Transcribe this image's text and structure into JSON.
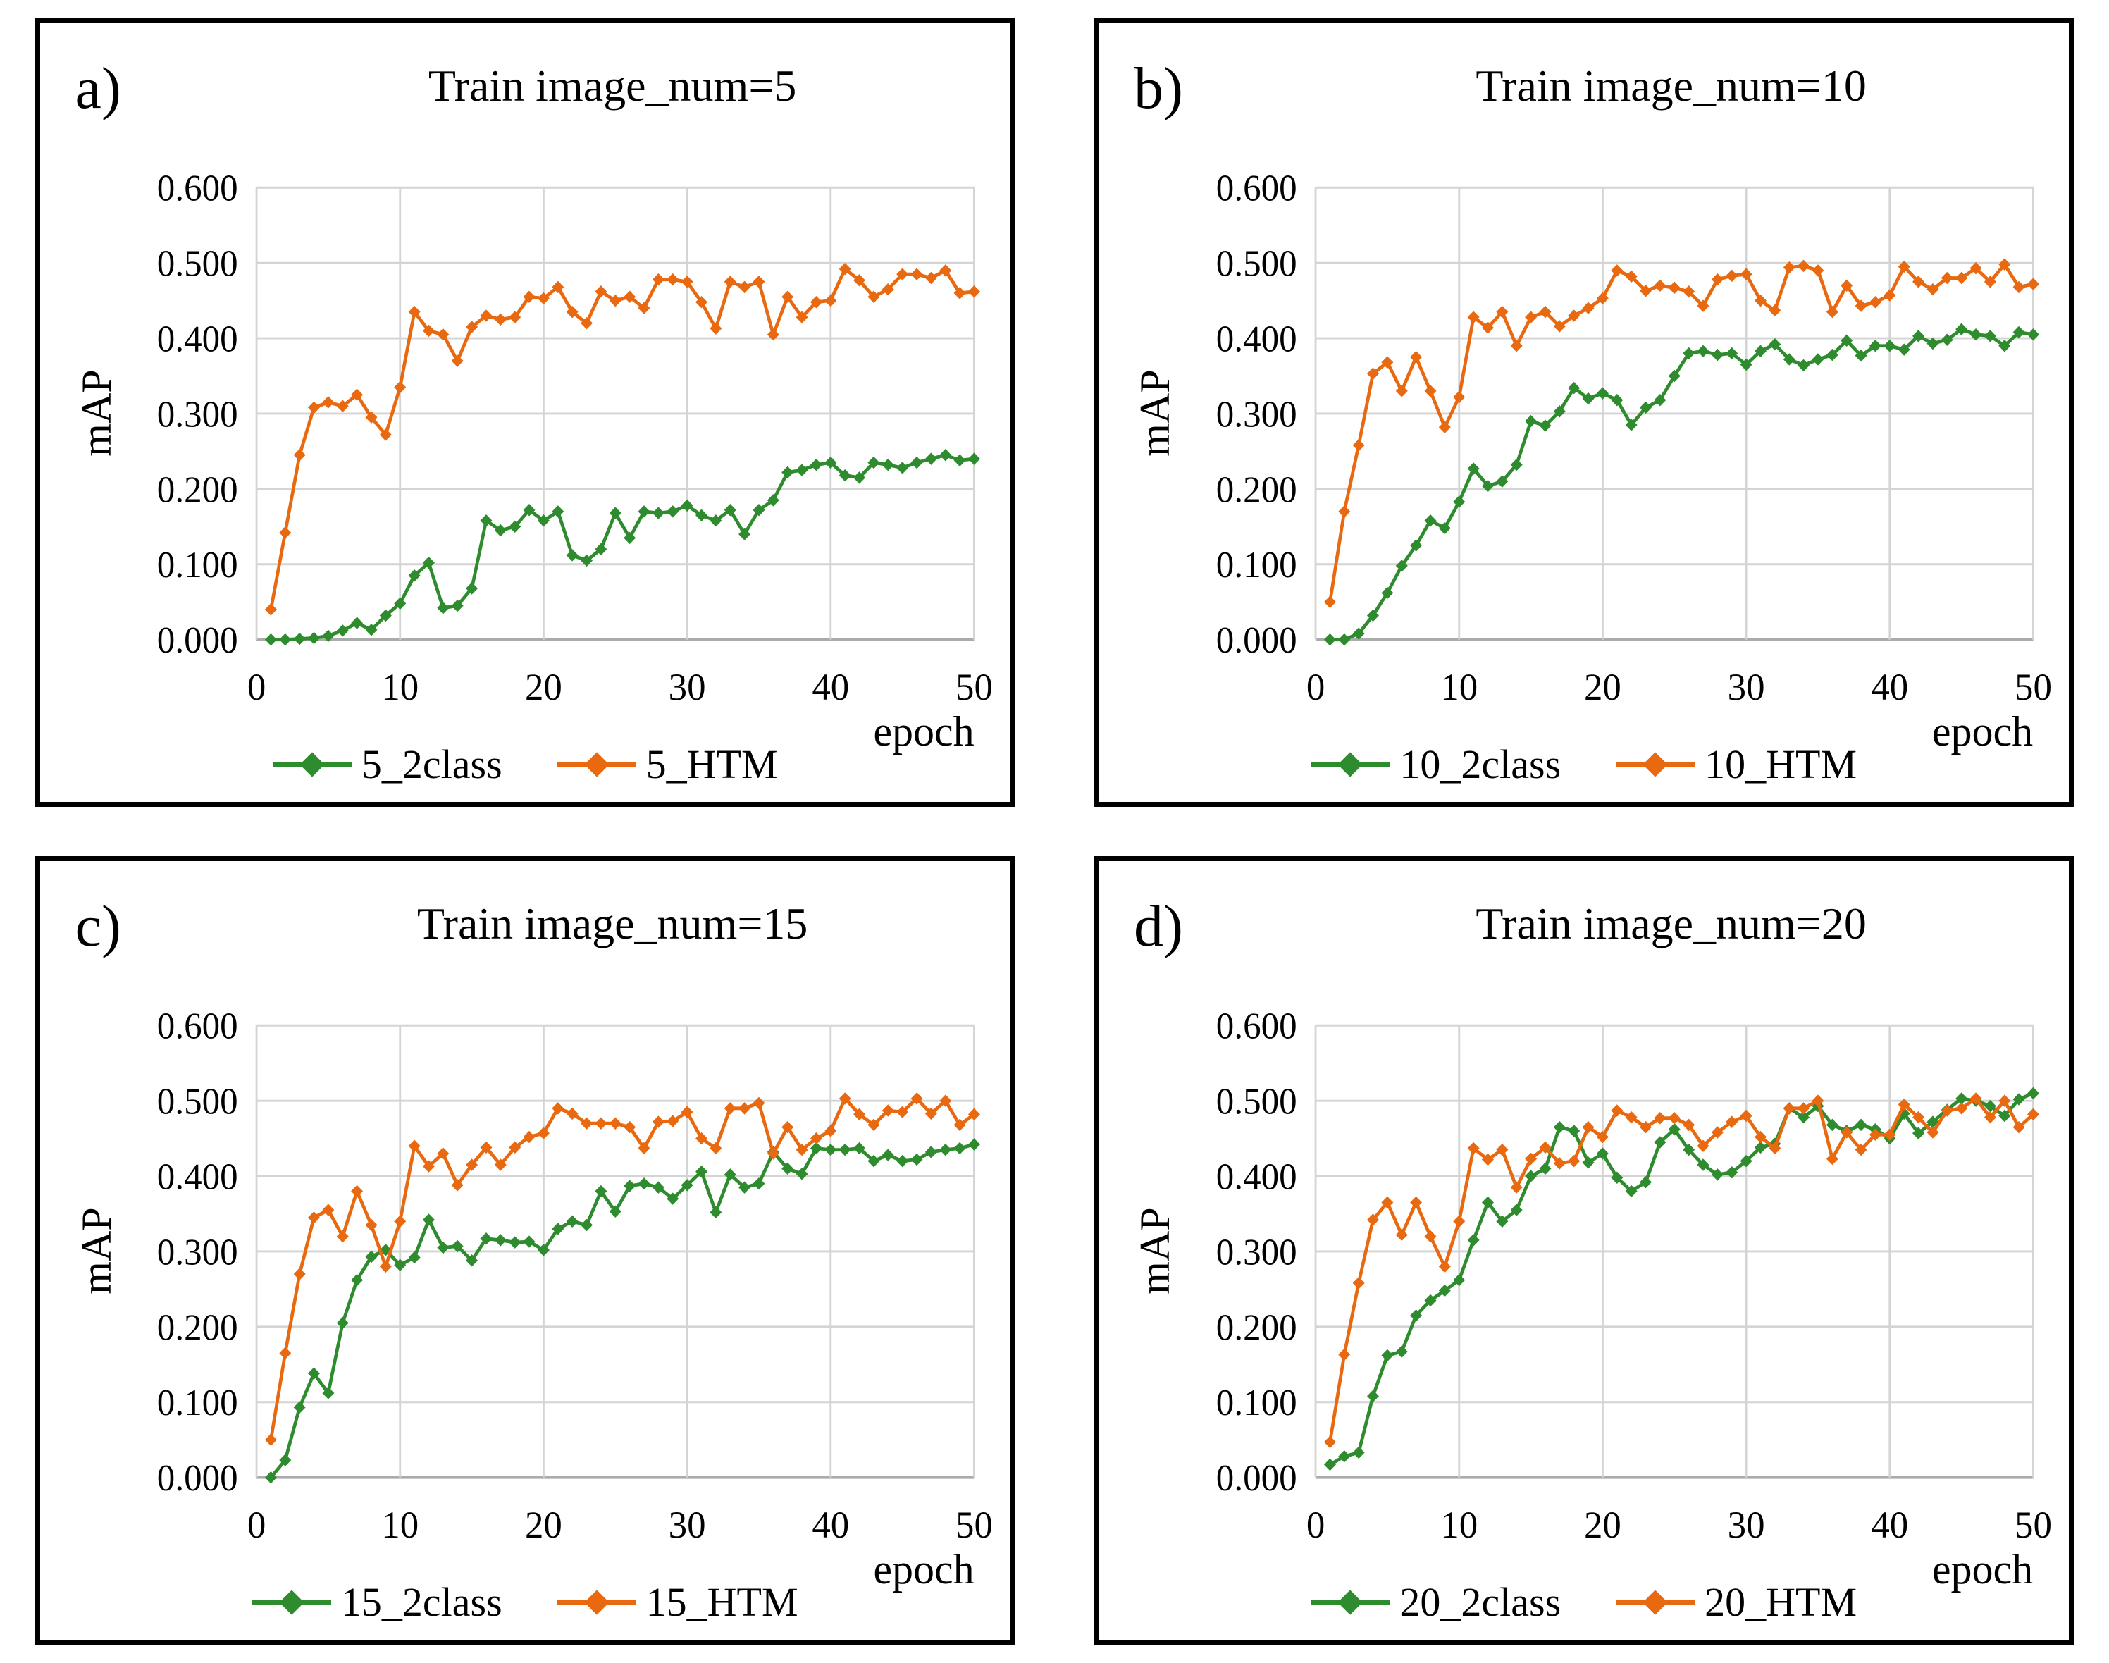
{
  "figure": {
    "background": "#ffffff",
    "panel_border_color": "#000000"
  },
  "colors": {
    "green": "#2E8B2E",
    "orange": "#E8690F",
    "grid": "#D4D4D4",
    "axis": "#ABABAB",
    "text": "#000000"
  },
  "chart_data": [
    {
      "type": "line",
      "panel_label": "a)",
      "title": "Train image_num=5",
      "xlabel": "epoch",
      "ylabel": "mAP",
      "xlim": [
        0,
        50
      ],
      "ylim": [
        0,
        0.6
      ],
      "xticks": [
        "0",
        "10",
        "20",
        "30",
        "40",
        "50"
      ],
      "yticks": [
        "0.000",
        "0.100",
        "0.200",
        "0.300",
        "0.400",
        "0.500",
        "0.600"
      ],
      "epochs_start": 1,
      "grid": true,
      "legend_position": "bottom",
      "series": [
        {
          "name": "5_2class",
          "color": "#2E8B2E",
          "values": [
            0.0,
            0.0,
            0.001,
            0.002,
            0.005,
            0.012,
            0.022,
            0.013,
            0.032,
            0.048,
            0.085,
            0.102,
            0.042,
            0.045,
            0.068,
            0.158,
            0.145,
            0.15,
            0.172,
            0.158,
            0.17,
            0.112,
            0.105,
            0.12,
            0.168,
            0.135,
            0.17,
            0.168,
            0.17,
            0.178,
            0.165,
            0.158,
            0.172,
            0.14,
            0.172,
            0.185,
            0.222,
            0.225,
            0.232,
            0.235,
            0.218,
            0.215,
            0.235,
            0.232,
            0.228,
            0.235,
            0.24,
            0.245,
            0.238,
            0.24
          ]
        },
        {
          "name": "5_HTM",
          "color": "#E8690F",
          "values": [
            0.04,
            0.142,
            0.245,
            0.308,
            0.315,
            0.31,
            0.325,
            0.295,
            0.272,
            0.335,
            0.435,
            0.41,
            0.405,
            0.37,
            0.415,
            0.43,
            0.425,
            0.428,
            0.455,
            0.453,
            0.468,
            0.435,
            0.42,
            0.462,
            0.45,
            0.455,
            0.44,
            0.478,
            0.478,
            0.475,
            0.448,
            0.413,
            0.475,
            0.468,
            0.475,
            0.405,
            0.455,
            0.428,
            0.448,
            0.45,
            0.492,
            0.477,
            0.455,
            0.465,
            0.485,
            0.485,
            0.48,
            0.49,
            0.46,
            0.462
          ]
        }
      ]
    },
    {
      "type": "line",
      "panel_label": "b)",
      "title": "Train image_num=10",
      "xlabel": "epoch",
      "ylabel": "mAP",
      "xlim": [
        0,
        50
      ],
      "ylim": [
        0,
        0.6
      ],
      "xticks": [
        "0",
        "10",
        "20",
        "30",
        "40",
        "50"
      ],
      "yticks": [
        "0.000",
        "0.100",
        "0.200",
        "0.300",
        "0.400",
        "0.500",
        "0.600"
      ],
      "epochs_start": 1,
      "grid": true,
      "legend_position": "bottom",
      "series": [
        {
          "name": "10_2class",
          "color": "#2E8B2E",
          "values": [
            0.0,
            0.0,
            0.008,
            0.032,
            0.062,
            0.098,
            0.125,
            0.158,
            0.148,
            0.183,
            0.227,
            0.204,
            0.21,
            0.232,
            0.29,
            0.284,
            0.303,
            0.334,
            0.32,
            0.327,
            0.318,
            0.285,
            0.308,
            0.318,
            0.35,
            0.38,
            0.383,
            0.378,
            0.38,
            0.365,
            0.383,
            0.392,
            0.372,
            0.364,
            0.372,
            0.378,
            0.397,
            0.377,
            0.39,
            0.39,
            0.385,
            0.403,
            0.393,
            0.398,
            0.412,
            0.405,
            0.403,
            0.39,
            0.408,
            0.405
          ]
        },
        {
          "name": "10_HTM",
          "color": "#E8690F",
          "values": [
            0.05,
            0.17,
            0.258,
            0.353,
            0.368,
            0.33,
            0.375,
            0.33,
            0.282,
            0.322,
            0.428,
            0.414,
            0.435,
            0.39,
            0.428,
            0.435,
            0.416,
            0.43,
            0.44,
            0.453,
            0.49,
            0.482,
            0.463,
            0.47,
            0.467,
            0.462,
            0.443,
            0.478,
            0.483,
            0.485,
            0.45,
            0.437,
            0.494,
            0.496,
            0.49,
            0.435,
            0.47,
            0.443,
            0.448,
            0.457,
            0.495,
            0.475,
            0.465,
            0.48,
            0.48,
            0.493,
            0.475,
            0.498,
            0.468,
            0.472
          ]
        }
      ]
    },
    {
      "type": "line",
      "panel_label": "c)",
      "title": "Train image_num=15",
      "xlabel": "epoch",
      "ylabel": "mAP",
      "xlim": [
        0,
        50
      ],
      "ylim": [
        0,
        0.6
      ],
      "xticks": [
        "0",
        "10",
        "20",
        "30",
        "40",
        "50"
      ],
      "yticks": [
        "0.000",
        "0.100",
        "0.200",
        "0.300",
        "0.400",
        "0.500",
        "0.600"
      ],
      "epochs_start": 1,
      "grid": true,
      "legend_position": "bottom",
      "series": [
        {
          "name": "15_2class",
          "color": "#2E8B2E",
          "values": [
            0.0,
            0.023,
            0.093,
            0.138,
            0.112,
            0.205,
            0.262,
            0.293,
            0.302,
            0.282,
            0.292,
            0.342,
            0.305,
            0.307,
            0.288,
            0.317,
            0.315,
            0.312,
            0.313,
            0.302,
            0.33,
            0.34,
            0.335,
            0.38,
            0.353,
            0.387,
            0.39,
            0.385,
            0.37,
            0.388,
            0.406,
            0.352,
            0.402,
            0.385,
            0.39,
            0.432,
            0.41,
            0.403,
            0.437,
            0.435,
            0.435,
            0.437,
            0.42,
            0.428,
            0.42,
            0.422,
            0.432,
            0.435,
            0.437,
            0.442
          ]
        },
        {
          "name": "15_HTM",
          "color": "#E8690F",
          "values": [
            0.05,
            0.165,
            0.27,
            0.345,
            0.355,
            0.32,
            0.38,
            0.335,
            0.28,
            0.34,
            0.44,
            0.413,
            0.43,
            0.388,
            0.415,
            0.438,
            0.415,
            0.438,
            0.452,
            0.457,
            0.49,
            0.483,
            0.47,
            0.47,
            0.47,
            0.465,
            0.437,
            0.472,
            0.473,
            0.485,
            0.45,
            0.437,
            0.49,
            0.49,
            0.497,
            0.43,
            0.465,
            0.435,
            0.45,
            0.46,
            0.503,
            0.482,
            0.468,
            0.487,
            0.485,
            0.503,
            0.483,
            0.5,
            0.468,
            0.482
          ]
        }
      ]
    },
    {
      "type": "line",
      "panel_label": "d)",
      "title": "Train image_num=20",
      "xlabel": "epoch",
      "ylabel": "mAP",
      "xlim": [
        0,
        50
      ],
      "ylim": [
        0,
        0.6
      ],
      "xticks": [
        "0",
        "10",
        "20",
        "30",
        "40",
        "50"
      ],
      "yticks": [
        "0.000",
        "0.100",
        "0.200",
        "0.300",
        "0.400",
        "0.500",
        "0.600"
      ],
      "epochs_start": 1,
      "grid": true,
      "legend_position": "bottom",
      "series": [
        {
          "name": "20_2class",
          "color": "#2E8B2E",
          "values": [
            0.017,
            0.028,
            0.033,
            0.108,
            0.162,
            0.167,
            0.215,
            0.235,
            0.248,
            0.262,
            0.315,
            0.365,
            0.34,
            0.355,
            0.4,
            0.41,
            0.465,
            0.46,
            0.418,
            0.43,
            0.398,
            0.38,
            0.392,
            0.445,
            0.462,
            0.435,
            0.415,
            0.402,
            0.405,
            0.42,
            0.438,
            0.443,
            0.49,
            0.478,
            0.493,
            0.468,
            0.46,
            0.468,
            0.462,
            0.45,
            0.483,
            0.457,
            0.472,
            0.488,
            0.503,
            0.5,
            0.493,
            0.48,
            0.502,
            0.51
          ]
        },
        {
          "name": "20_HTM",
          "color": "#E8690F",
          "values": [
            0.047,
            0.163,
            0.258,
            0.342,
            0.365,
            0.322,
            0.365,
            0.32,
            0.28,
            0.34,
            0.437,
            0.422,
            0.435,
            0.385,
            0.423,
            0.438,
            0.417,
            0.42,
            0.465,
            0.452,
            0.487,
            0.478,
            0.465,
            0.477,
            0.477,
            0.468,
            0.44,
            0.458,
            0.472,
            0.48,
            0.452,
            0.437,
            0.49,
            0.49,
            0.5,
            0.423,
            0.458,
            0.435,
            0.455,
            0.455,
            0.495,
            0.478,
            0.458,
            0.487,
            0.49,
            0.503,
            0.478,
            0.5,
            0.465,
            0.482
          ]
        }
      ]
    }
  ]
}
